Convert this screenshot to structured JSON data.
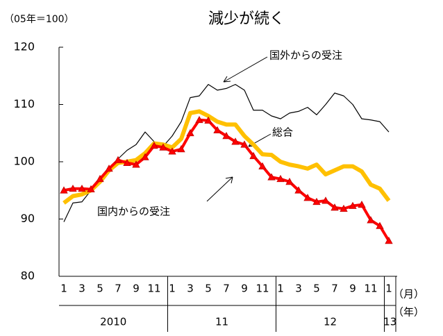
{
  "chart_data": {
    "type": "line",
    "title": "減少が続く",
    "y_label": "（05年＝100）",
    "x_unit_month": "（月）",
    "x_unit_year": "（年）",
    "categories": [
      "1",
      null,
      "3",
      null,
      "5",
      null,
      "7",
      null,
      "9",
      null,
      "11",
      null,
      "1",
      null,
      "3",
      null,
      "5",
      null,
      "7",
      null,
      "9",
      null,
      "11",
      null,
      "1",
      null,
      "3",
      null,
      "5",
      null,
      "7",
      null,
      "9",
      null,
      "11",
      null,
      "1"
    ],
    "year_groups": [
      "2010",
      "11",
      "12",
      "13"
    ],
    "series": [
      {
        "name": "国外からの受注",
        "color": "#000000",
        "width": 1.2,
        "marker": false,
        "values": [
          89.5,
          92.8,
          93,
          95,
          97,
          99,
          100.5,
          102,
          103,
          105.2,
          103.5,
          102.7,
          104.5,
          107,
          111.2,
          111.5,
          113.5,
          112.5,
          112.8,
          113.5,
          112.5,
          109,
          109,
          108,
          107.5,
          108.5,
          108.8,
          109.5,
          108.2,
          110,
          112,
          111.5,
          110,
          107.5,
          107.3,
          107,
          105.2
        ]
      },
      {
        "name": "総合",
        "color": "#ffc000",
        "width": 6,
        "marker": false,
        "values": [
          92.8,
          94,
          94.3,
          95,
          96.5,
          98.5,
          99.8,
          100,
          100.3,
          101.5,
          103.2,
          103,
          102.5,
          104,
          108.5,
          108.8,
          108,
          107,
          106.5,
          106.5,
          104.5,
          103,
          101.3,
          101.2,
          100,
          99.5,
          99.2,
          98.8,
          99.5,
          97.8,
          98.5,
          99.2,
          99.2,
          98.3,
          96,
          95.3,
          93.2
        ]
      },
      {
        "name": "国内からの受注",
        "color": "#ff0000",
        "width": 4,
        "marker": true,
        "values": [
          95,
          95.3,
          95.3,
          95.2,
          97,
          98.8,
          100.3,
          99.8,
          99.5,
          100.8,
          102.8,
          102.5,
          101.8,
          102.2,
          105,
          107.3,
          107.2,
          105.5,
          104.5,
          103.5,
          103,
          101,
          99.2,
          97.3,
          97,
          96.5,
          95,
          93.7,
          93,
          93.2,
          92,
          91.8,
          92.3,
          92.5,
          89.8,
          88.8,
          86.2
        ]
      }
    ],
    "ylim": [
      80,
      120
    ],
    "yticks": [
      80,
      90,
      100,
      110,
      120
    ]
  }
}
